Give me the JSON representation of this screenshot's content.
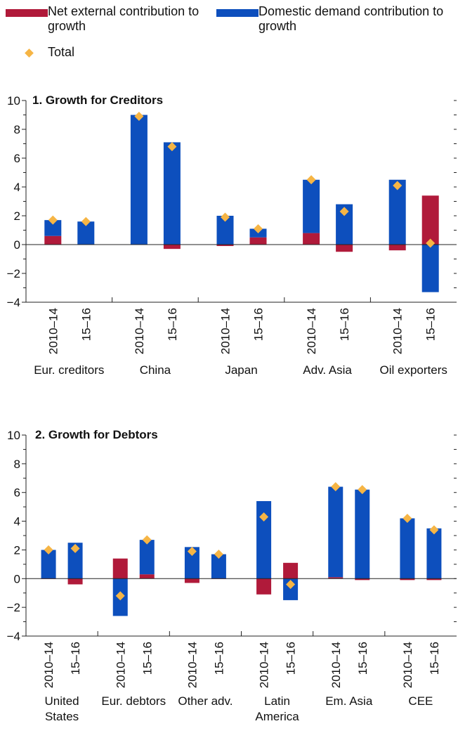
{
  "legend": {
    "net_external": "Net external contribution to growth",
    "domestic": "Domestic demand contribution to growth",
    "total": "Total"
  },
  "colors": {
    "net_external": "#b01a3a",
    "domestic": "#0d4fbd",
    "total": "#f6b545"
  },
  "chart_data": [
    {
      "type": "bar",
      "title": "1. Growth for Creditors",
      "ylim": [
        -4,
        10
      ],
      "yticks": [
        -4,
        -2,
        0,
        2,
        4,
        6,
        8,
        10
      ],
      "period_labels": [
        "2010–14",
        "15–16"
      ],
      "groups": [
        {
          "name": "Eur. creditors",
          "net_external": [
            0.6,
            0.0
          ],
          "domestic": [
            1.1,
            1.6
          ],
          "total": [
            1.7,
            1.6
          ]
        },
        {
          "name": "China",
          "net_external": [
            0.0,
            -0.3
          ],
          "domestic": [
            9.0,
            7.1
          ],
          "total": [
            8.9,
            6.8
          ]
        },
        {
          "name": "Japan",
          "net_external": [
            -0.1,
            0.5
          ],
          "domestic": [
            2.0,
            0.6
          ],
          "total": [
            1.9,
            1.1
          ]
        },
        {
          "name": "Adv. Asia",
          "net_external": [
            0.8,
            -0.5
          ],
          "domestic": [
            3.7,
            2.8
          ],
          "total": [
            4.5,
            2.3
          ]
        },
        {
          "name": "Oil exporters",
          "net_external": [
            -0.4,
            3.4
          ],
          "domestic": [
            4.5,
            -3.3
          ],
          "total": [
            4.1,
            0.1
          ]
        }
      ]
    },
    {
      "type": "bar",
      "title": "2. Growth for Debtors",
      "ylim": [
        -4,
        10
      ],
      "yticks": [
        -4,
        -2,
        0,
        2,
        4,
        6,
        8,
        10
      ],
      "period_labels": [
        "2010–14",
        "15–16"
      ],
      "groups": [
        {
          "name": "United States",
          "label_lines": [
            "United",
            "States"
          ],
          "net_external": [
            0.0,
            -0.4
          ],
          "domestic": [
            2.0,
            2.5
          ],
          "total": [
            2.0,
            2.1
          ]
        },
        {
          "name": "Eur. debtors",
          "label_lines": [
            "Eur. debtors"
          ],
          "net_external": [
            1.4,
            0.3
          ],
          "domestic": [
            -2.6,
            2.4
          ],
          "total": [
            -1.2,
            2.7
          ]
        },
        {
          "name": "Other adv.",
          "label_lines": [
            "Other adv."
          ],
          "net_external": [
            -0.3,
            0.0
          ],
          "domestic": [
            2.2,
            1.7
          ],
          "total": [
            1.9,
            1.7
          ]
        },
        {
          "name": "Latin America",
          "label_lines": [
            "Latin",
            "America"
          ],
          "net_external": [
            -1.1,
            1.1
          ],
          "domestic": [
            5.4,
            -1.5
          ],
          "total": [
            4.3,
            -0.4
          ]
        },
        {
          "name": "Em. Asia",
          "label_lines": [
            "Em. Asia"
          ],
          "net_external": [
            0.1,
            -0.1
          ],
          "domestic": [
            6.3,
            6.2
          ],
          "total": [
            6.4,
            6.2
          ]
        },
        {
          "name": "CEE",
          "label_lines": [
            "CEE"
          ],
          "net_external": [
            -0.1,
            -0.1
          ],
          "domestic": [
            4.2,
            3.5
          ],
          "total": [
            4.2,
            3.4
          ]
        }
      ]
    }
  ]
}
